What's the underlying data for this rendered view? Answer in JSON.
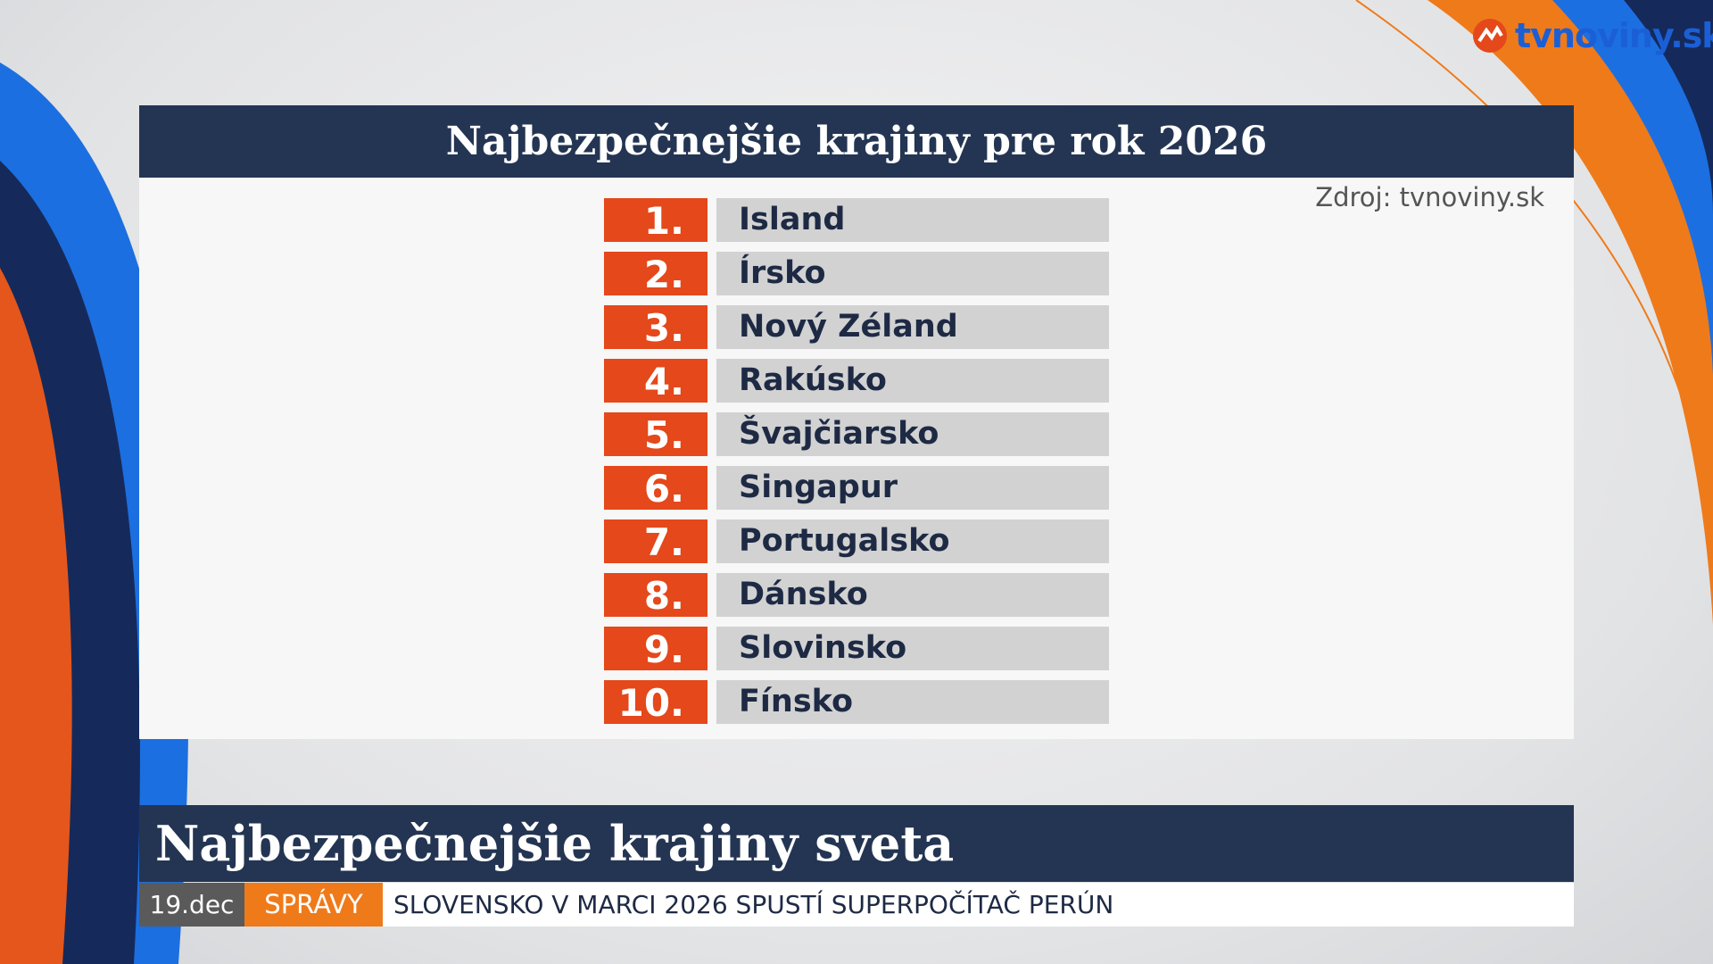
{
  "logo": "tvnoviny.sk",
  "panel": {
    "title": "Najbezpečnejšie krajiny pre rok 2026",
    "source": "Zdroj: tvnoviny.sk",
    "items": [
      {
        "rank": "1.",
        "name": "Island"
      },
      {
        "rank": "2.",
        "name": "Írsko"
      },
      {
        "rank": "3.",
        "name": "Nový Zéland"
      },
      {
        "rank": "4.",
        "name": "Rakúsko"
      },
      {
        "rank": "5.",
        "name": "Švajčiarsko"
      },
      {
        "rank": "6.",
        "name": "Singapur"
      },
      {
        "rank": "7.",
        "name": "Portugalsko"
      },
      {
        "rank": "8.",
        "name": "Dánsko"
      },
      {
        "rank": "9.",
        "name": "Slovinsko"
      },
      {
        "rank": "10.",
        "name": "Fínsko"
      }
    ]
  },
  "lower_third": {
    "headline": "Najbezpečnejšie krajiny sveta",
    "date": "19.dec",
    "section": "SPRÁVY",
    "ticker": "SLOVENSKO V MARCI 2026 SPUSTÍ SUPERPOČÍTAČ PERÚN"
  }
}
